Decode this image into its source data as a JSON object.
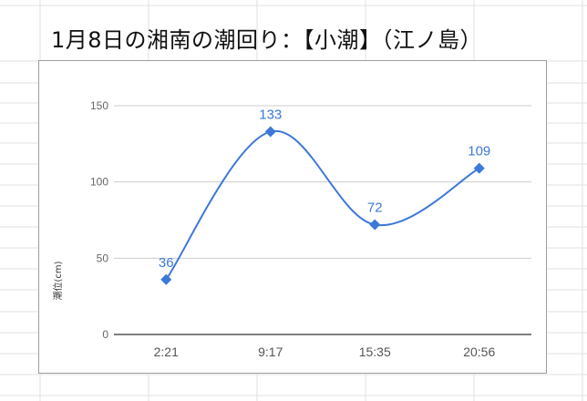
{
  "chart_data": {
    "type": "line",
    "title": "1月8日の湘南の潮回り：【小潮】（江ノ島）",
    "xlabel": "",
    "ylabel": "潮位(cm)",
    "categories": [
      "2:21",
      "9:17",
      "15:35",
      "20:56"
    ],
    "series": [
      {
        "values": [
          36,
          133,
          72,
          109
        ]
      }
    ],
    "ylim": [
      0,
      150
    ],
    "yticks": [
      0,
      50,
      100,
      150
    ],
    "grid": true,
    "smooth": true,
    "marker": "diamond",
    "data_labels": true,
    "legend": "none",
    "colors": {
      "series": "#3c78d8",
      "grid": "#cccccc",
      "axis": "#333333"
    }
  }
}
